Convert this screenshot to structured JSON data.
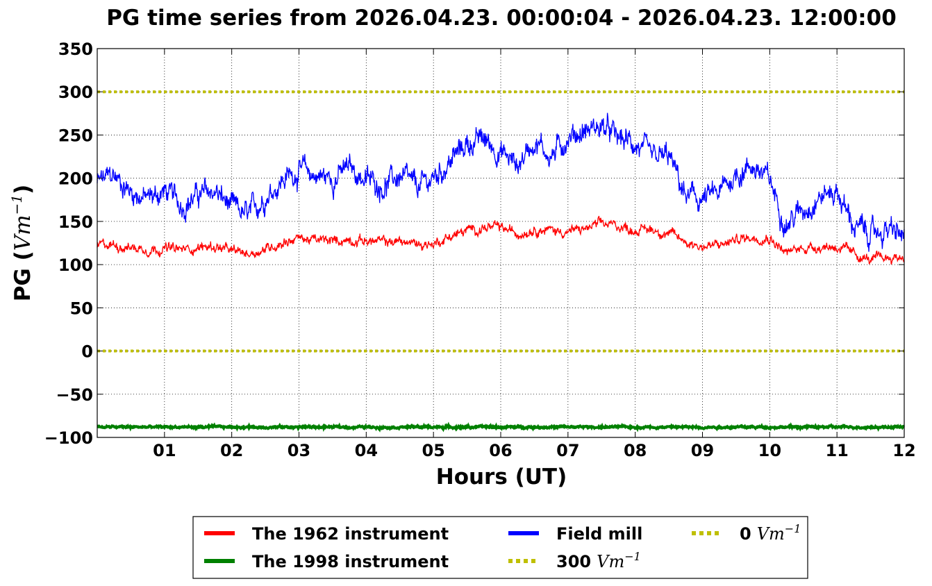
{
  "chart_data": {
    "type": "line",
    "title": "PG time series from 2026.04.23. 00:00:04 - 2026.04.23. 12:00:00",
    "xlabel": "Hours (UT)",
    "ylabel": "PG (",
    "ylabel_unit": "Vm",
    "ylabel_unit_exp": "−1",
    "ylabel_close": ")",
    "xlim": [
      0,
      12
    ],
    "ylim": [
      -100,
      350
    ],
    "x_ticks": [
      1,
      2,
      3,
      4,
      5,
      6,
      7,
      8,
      9,
      10,
      11,
      12
    ],
    "x_tick_labels": [
      "01",
      "02",
      "03",
      "04",
      "05",
      "06",
      "07",
      "08",
      "09",
      "10",
      "11",
      "12"
    ],
    "y_ticks": [
      -100,
      -50,
      0,
      50,
      100,
      150,
      200,
      250,
      300,
      350
    ],
    "y_tick_labels": [
      "−100",
      "−50",
      "0",
      "50",
      "100",
      "150",
      "200",
      "250",
      "300",
      "350"
    ],
    "grid": true,
    "legend_placement": "bottom, below axes",
    "series": [
      {
        "name": "The 1962 instrument",
        "color": "#ff0000",
        "style": "solid",
        "x": [
          0,
          0.25,
          0.5,
          0.75,
          1,
          1.25,
          1.5,
          1.75,
          2,
          2.25,
          2.5,
          2.75,
          3,
          3.25,
          3.5,
          3.75,
          4,
          4.25,
          4.5,
          4.75,
          5,
          5.25,
          5.5,
          5.75,
          6,
          6.25,
          6.5,
          6.75,
          7,
          7.25,
          7.5,
          7.75,
          8,
          8.25,
          8.5,
          8.75,
          9,
          9.25,
          9.5,
          9.75,
          10,
          10.25,
          10.5,
          10.75,
          11,
          11.25,
          11.5,
          11.75,
          12
        ],
        "y": [
          122,
          123,
          120,
          118,
          119,
          117,
          120,
          121,
          115,
          113,
          118,
          126,
          131,
          128,
          127,
          129,
          128,
          126,
          127,
          124,
          124,
          133,
          139,
          143,
          142,
          136,
          142,
          140,
          138,
          141,
          147,
          145,
          140,
          141,
          136,
          127,
          121,
          122,
          129,
          132,
          132,
          113,
          120,
          121,
          121,
          112,
          105,
          108,
          109
        ]
      },
      {
        "name": "The 1998 instrument",
        "color": "#008000",
        "style": "solid",
        "x": [
          0,
          12
        ],
        "y": [
          -88,
          -88
        ]
      },
      {
        "name": "Field mill",
        "color": "#0000ff",
        "style": "solid",
        "x": [
          0,
          0.25,
          0.5,
          0.75,
          1,
          1.25,
          1.5,
          1.75,
          2,
          2.25,
          2.5,
          2.75,
          3,
          3.25,
          3.5,
          3.75,
          4,
          4.25,
          4.5,
          4.75,
          5,
          5.25,
          5.5,
          5.75,
          6,
          6.25,
          6.5,
          6.75,
          7,
          7.25,
          7.5,
          7.75,
          8,
          8.25,
          8.5,
          8.75,
          9,
          9.25,
          9.5,
          9.75,
          10,
          10.25,
          10.5,
          10.75,
          11,
          11.25,
          11.5,
          11.75,
          12
        ],
        "y": [
          195,
          203,
          185,
          176,
          185,
          170,
          180,
          185,
          165,
          155,
          180,
          198,
          210,
          203,
          200,
          212,
          198,
          192,
          202,
          188,
          200,
          220,
          240,
          245,
          230,
          215,
          245,
          225,
          248,
          255,
          260,
          245,
          240,
          220,
          225,
          178,
          175,
          182,
          205,
          215,
          196,
          148,
          165,
          180,
          185,
          145,
          135,
          140,
          132
        ]
      },
      {
        "name": "300",
        "unit": "Vm",
        "unit_exp": "−1",
        "color": "#bfbf00",
        "style": "dotted",
        "x": [
          0,
          12
        ],
        "y": [
          300,
          300
        ]
      },
      {
        "name": "0",
        "unit": "Vm",
        "unit_exp": "−1",
        "color": "#bfbf00",
        "style": "dotted",
        "x": [
          0,
          12
        ],
        "y": [
          0,
          0
        ]
      }
    ]
  }
}
